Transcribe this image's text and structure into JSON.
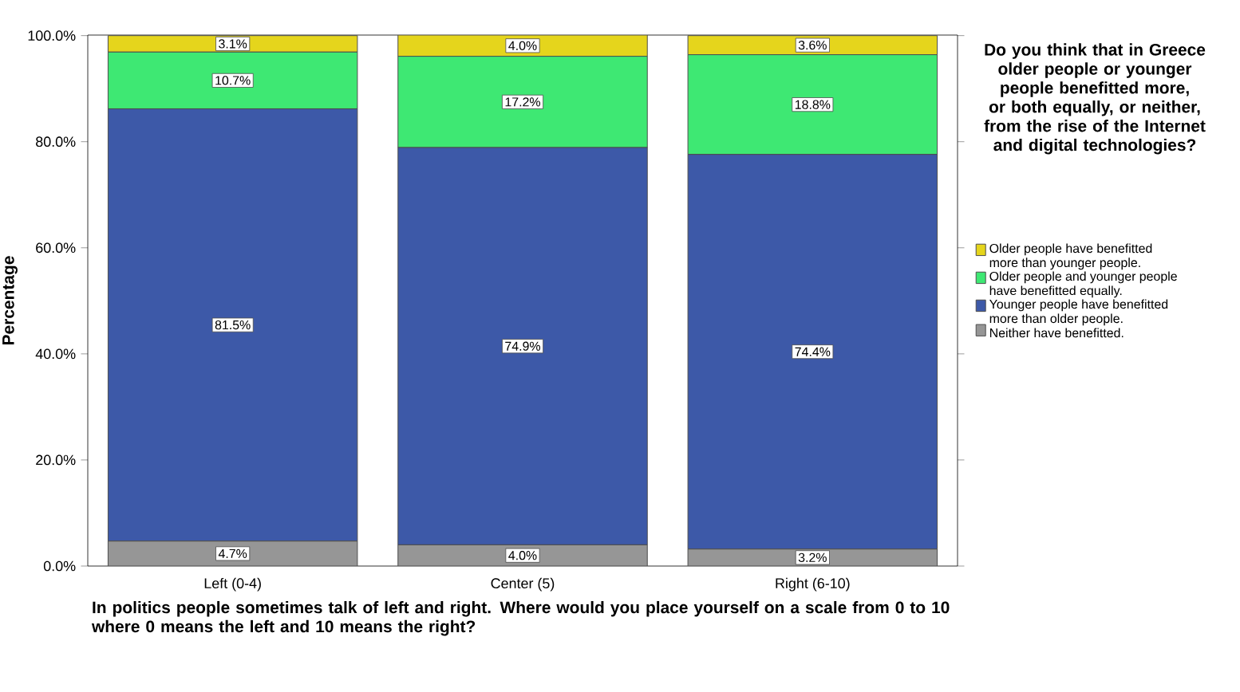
{
  "chart_data": {
    "type": "bar",
    "stacked": true,
    "legend_title": "Do you think that in Greece older people or younger people benefitted more, or both equally, or neither, from the rise of the Internet and digital technologies?",
    "xlabel": "In politics people sometimes talk of left and right. Where would you place yourself on a scale from 0 to 10 where 0 means the left and 10 means the right?",
    "ylabel": "Percentage",
    "categories": [
      "Left (0-4)",
      "Center (5)",
      "Right (6-10)"
    ],
    "series": [
      {
        "name": "Neither have benefitted.",
        "color": "#969696",
        "values": [
          4.7,
          4.0,
          3.2
        ],
        "value_labels": [
          "4.7%",
          "4.0%",
          "3.2%"
        ]
      },
      {
        "name": "Younger people have benefitted more than older people.",
        "color": "#3d59a8",
        "values": [
          81.5,
          74.9,
          74.4
        ],
        "value_labels": [
          "81.5%",
          "74.9%",
          "74.4%"
        ]
      },
      {
        "name": "Older people and younger people have benefitted equally.",
        "color": "#3ee873",
        "values": [
          10.7,
          17.2,
          18.8
        ],
        "value_labels": [
          "10.7%",
          "17.2%",
          "18.8%"
        ]
      },
      {
        "name": "Older people have benefitted more than younger people.",
        "color": "#e5d51c",
        "values": [
          3.1,
          4.0,
          3.6
        ],
        "value_labels": [
          "3.1%",
          "4.0%",
          "3.6%"
        ]
      }
    ],
    "ylim": [
      0,
      100.1
    ],
    "yticks": [
      {
        "value": 0,
        "label": "0.0%"
      },
      {
        "value": 20,
        "label": "20.0%"
      },
      {
        "value": 40,
        "label": "40.0%"
      },
      {
        "value": 60,
        "label": "60.0%"
      },
      {
        "value": 80,
        "label": "80.0%"
      },
      {
        "value": 100,
        "label": "100.0%"
      }
    ],
    "legend": "right"
  }
}
